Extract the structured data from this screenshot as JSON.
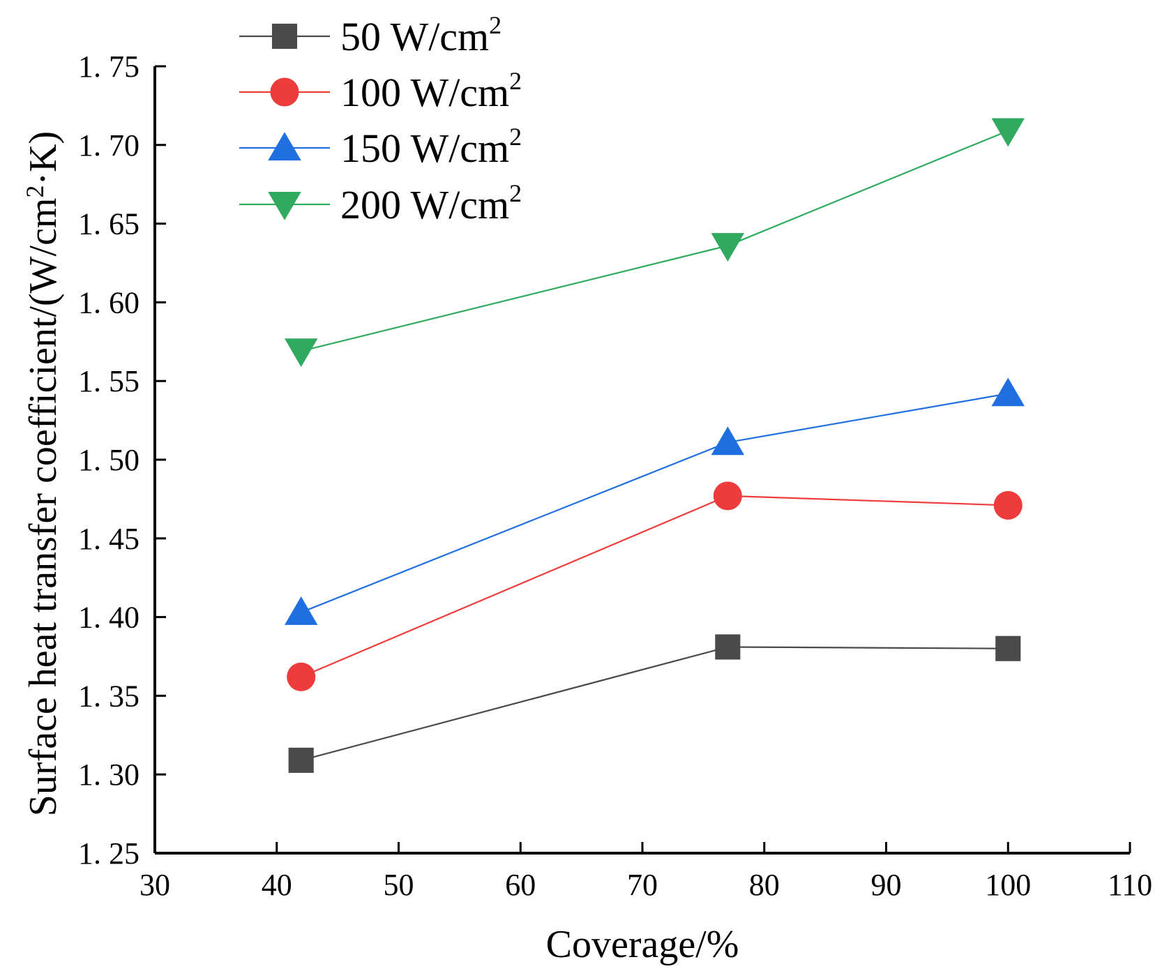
{
  "chart_data": {
    "type": "line",
    "xlabel": "Coverage/%",
    "ylabel_parts": {
      "main": "Surface heat transfer coefficient/(W/cm",
      "sup": "2",
      "tail": "·K)"
    },
    "xlim": [
      30,
      110
    ],
    "ylim": [
      1.25,
      1.75
    ],
    "xticks": [
      30,
      40,
      50,
      60,
      70,
      80,
      90,
      100,
      110
    ],
    "xtick_labels": [
      "30",
      "40",
      "50",
      "60",
      "70",
      "80",
      "90",
      "100",
      "110"
    ],
    "yticks": [
      1.25,
      1.3,
      1.35,
      1.4,
      1.45,
      1.5,
      1.55,
      1.6,
      1.65,
      1.7,
      1.75
    ],
    "ytick_labels": [
      "1. 25",
      "1. 30",
      "1. 35",
      "1. 40",
      "1. 45",
      "1. 50",
      "1. 55",
      "1. 60",
      "1. 65",
      "1. 70",
      "1. 75"
    ],
    "x": [
      42,
      77,
      100
    ],
    "legend_position": "top-left",
    "series": [
      {
        "name": "50 W/cm",
        "sup": "2",
        "values": [
          1.309,
          1.381,
          1.38
        ],
        "color": "#4a4a4a",
        "marker": "square"
      },
      {
        "name": "100 W/cm",
        "sup": "2",
        "values": [
          1.362,
          1.477,
          1.471
        ],
        "color": "#ee3b3b",
        "marker": "circle"
      },
      {
        "name": "150 W/cm",
        "sup": "2",
        "values": [
          1.403,
          1.511,
          1.542
        ],
        "color": "#1f6fe0",
        "marker": "triangle-up"
      },
      {
        "name": "200 W/cm",
        "sup": "2",
        "values": [
          1.569,
          1.636,
          1.709
        ],
        "color": "#2faa5f",
        "marker": "triangle-down"
      }
    ]
  }
}
